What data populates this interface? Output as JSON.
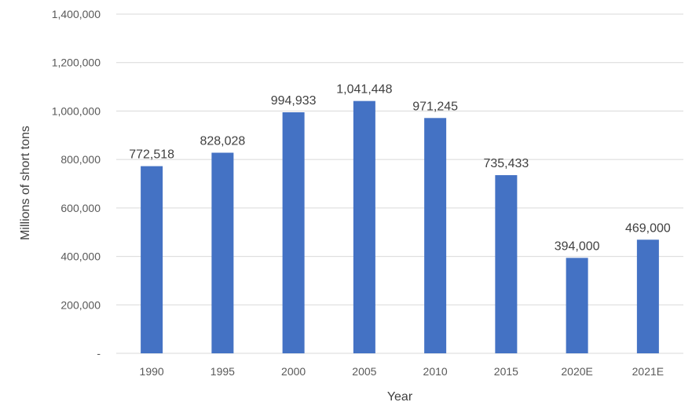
{
  "chart_data": {
    "type": "bar",
    "categories": [
      "1990",
      "1995",
      "2000",
      "2005",
      "2010",
      "2015",
      "2020E",
      "2021E"
    ],
    "values": [
      772518,
      828028,
      994933,
      1041448,
      971245,
      735433,
      394000,
      469000
    ],
    "value_labels": [
      "772,518",
      "828,028",
      "994,933",
      "1,041,448",
      "971,245",
      "735,433",
      "394,000",
      "469,000"
    ],
    "xlabel": "Year",
    "ylabel": "Millions of short tons",
    "ylim": [
      0,
      1400000
    ],
    "y_ticks": [
      0,
      200000,
      400000,
      600000,
      800000,
      1000000,
      1200000,
      1400000
    ],
    "y_tick_labels": [
      "-",
      "200,000",
      "400,000",
      "600,000",
      "800,000",
      "1,000,000",
      "1,200,000",
      "1,400,000"
    ],
    "grid": true,
    "bar_color": "#4472c4",
    "legend": "none"
  }
}
